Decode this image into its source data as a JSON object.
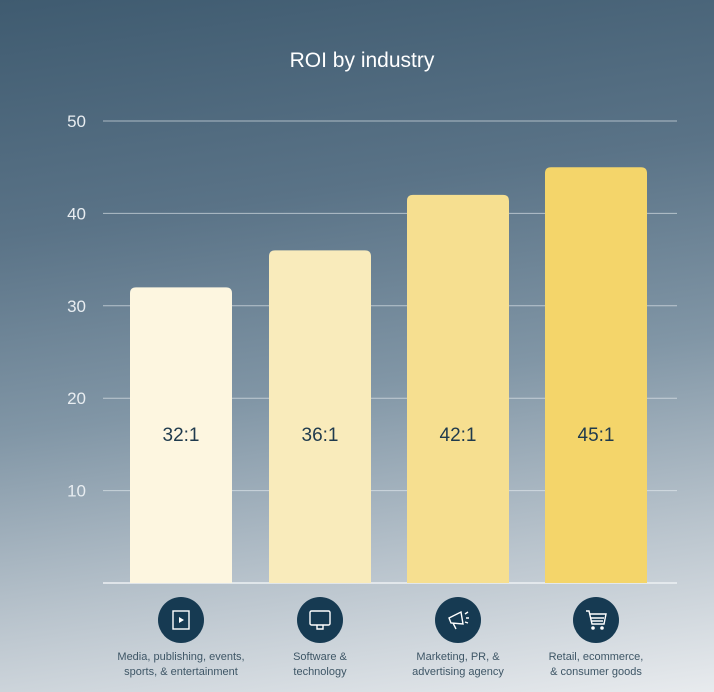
{
  "chart_data": {
    "type": "bar",
    "title": "ROI by industry",
    "categories": [
      [
        "Media, publishing, events,",
        "sports, & entertainment"
      ],
      [
        "Software &",
        "technology"
      ],
      [
        "Marketing, PR, &",
        "advertising agency"
      ],
      [
        "Retail, ecommerce,",
        "& consumer goods"
      ]
    ],
    "category_icons": [
      "video-player-icon",
      "computer-monitor-icon",
      "megaphone-icon",
      "shopping-cart-icon"
    ],
    "values": [
      32,
      36,
      42,
      45
    ],
    "data_labels": [
      "32:1",
      "36:1",
      "42:1",
      "45:1"
    ],
    "bar_colors": [
      "#fdf6e0",
      "#f9ebbb",
      "#f6df90",
      "#f4d56a"
    ],
    "icon_circle_color": "#163a52",
    "yticks": [
      10,
      20,
      30,
      40,
      50
    ],
    "ylim": [
      0,
      50
    ],
    "grid": true,
    "xlabel": "",
    "ylabel": ""
  }
}
